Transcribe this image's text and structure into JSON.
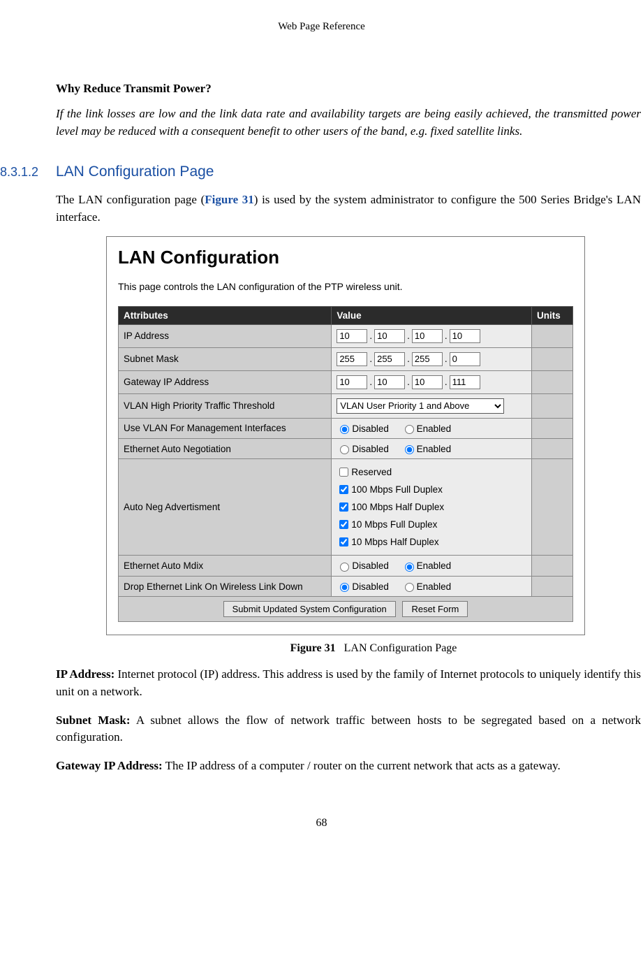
{
  "running_head": "Web Page Reference",
  "heading1": "Why Reduce Transmit Power?",
  "italic_para": "If the link losses are low and the link data rate and availability targets are being easily achieved, the transmitted power level may be reduced with a consequent benefit to other users of the band, e.g. fixed satellite links.",
  "section_num": "8.3.1.2",
  "section_title": "LAN Configuration Page",
  "intro_a": "The LAN configuration page (",
  "intro_ref": "Figure 31",
  "intro_b": ") is used by the system administrator to configure the 500 Series Bridge's LAN interface.",
  "fig": {
    "title": "LAN Configuration",
    "subtitle": "This page controls the LAN configuration of the PTP wireless unit.",
    "th_attr": "Attributes",
    "th_val": "Value",
    "th_units": "Units",
    "rows": {
      "ip": {
        "label": "IP Address",
        "oct": [
          "10",
          "10",
          "10",
          "10"
        ]
      },
      "mask": {
        "label": "Subnet Mask",
        "oct": [
          "255",
          "255",
          "255",
          "0"
        ]
      },
      "gw": {
        "label": "Gateway IP Address",
        "oct": [
          "10",
          "10",
          "10",
          "111"
        ]
      },
      "vlan_thr": {
        "label": "VLAN High Priority Traffic Threshold",
        "sel": "VLAN User Priority 1 and Above"
      },
      "vlan_mgmt": {
        "label": "Use VLAN For Management Interfaces",
        "opt_a": "Disabled",
        "opt_b": "Enabled",
        "selected": "a"
      },
      "autoneg": {
        "label": "Ethernet Auto Negotiation",
        "opt_a": "Disabled",
        "opt_b": "Enabled",
        "selected": "b"
      },
      "adv": {
        "label": "Auto Neg Advertisment",
        "items": [
          {
            "label": "Reserved",
            "checked": false
          },
          {
            "label": "100 Mbps Full Duplex",
            "checked": true
          },
          {
            "label": "100 Mbps Half Duplex",
            "checked": true
          },
          {
            "label": "10 Mbps Full Duplex",
            "checked": true
          },
          {
            "label": "10 Mbps Half Duplex",
            "checked": true
          }
        ]
      },
      "mdix": {
        "label": "Ethernet Auto Mdix",
        "opt_a": "Disabled",
        "opt_b": "Enabled",
        "selected": "b"
      },
      "drop": {
        "label": "Drop Ethernet Link On Wireless Link Down",
        "opt_a": "Disabled",
        "opt_b": "Enabled",
        "selected": "a"
      }
    },
    "btn_submit": "Submit Updated System Configuration",
    "btn_reset": "Reset Form"
  },
  "caption_num": "Figure 31",
  "caption_text": "LAN Configuration Page",
  "defs": [
    {
      "term": "IP Address:",
      "text": " Internet protocol (IP) address.  This address is used by the family of Internet protocols to uniquely identify this unit on a network."
    },
    {
      "term": "Subnet Mask:",
      "text": " A subnet allows the flow of network traffic between hosts to be segregated based on a network configuration."
    },
    {
      "term": "Gateway IP Address:",
      "text": " The IP address of a computer / router on the current network that acts as a gateway."
    }
  ],
  "pagenum": "68"
}
